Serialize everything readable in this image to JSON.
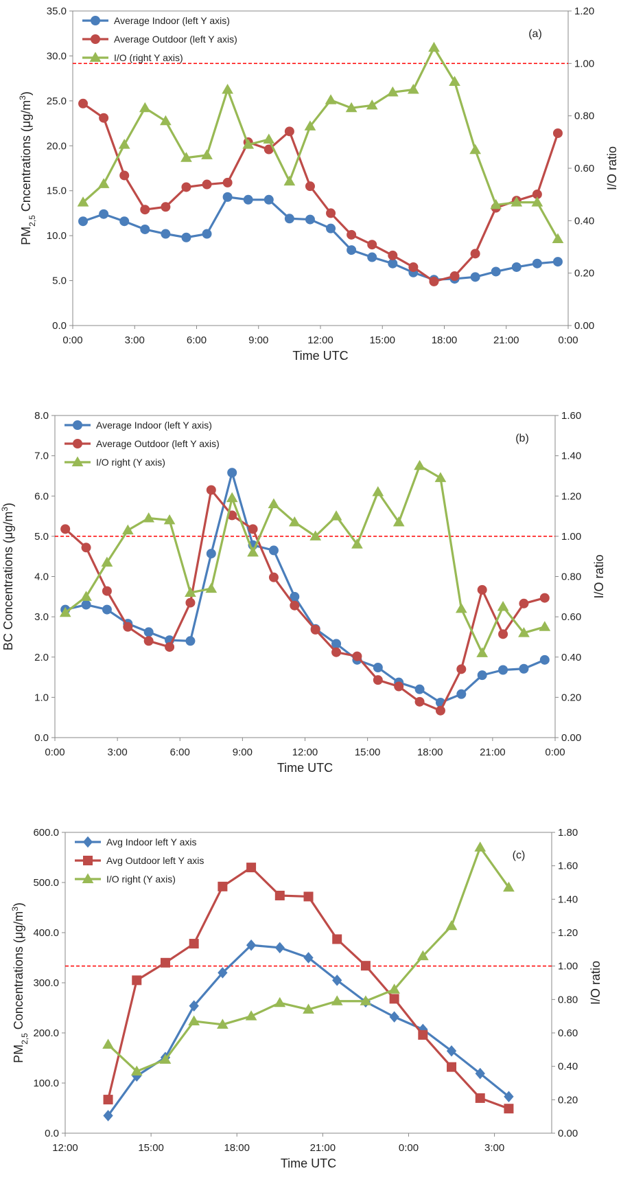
{
  "chart_data": [
    {
      "type": "line",
      "annotation": "(a)",
      "xlabel": "Time UTC",
      "ylabel_parts": [
        {
          "text": "PM"
        },
        {
          "text": "2,5",
          "shift": "sub"
        },
        {
          "text": " Cncentrations (μg/m"
        },
        {
          "text": "3",
          "shift": "super"
        },
        {
          "text": ")"
        }
      ],
      "y2label": "I/O ratio",
      "legend": "upper left",
      "xlim": [
        0,
        24
      ],
      "xticks": [
        {
          "value": 0,
          "label": "0:00"
        },
        {
          "value": 3,
          "label": "3:00"
        },
        {
          "value": 6,
          "label": "6:00"
        },
        {
          "value": 9,
          "label": "9:00"
        },
        {
          "value": 12,
          "label": "12:00"
        },
        {
          "value": 15,
          "label": "15:00"
        },
        {
          "value": 18,
          "label": "18:00"
        },
        {
          "value": 21,
          "label": "21:00"
        },
        {
          "value": 24,
          "label": "0:00"
        }
      ],
      "ylim": [
        0,
        35
      ],
      "yticks": [
        {
          "value": 0,
          "label": "0.0"
        },
        {
          "value": 5,
          "label": "5.0"
        },
        {
          "value": 10,
          "label": "10.0"
        },
        {
          "value": 15,
          "label": "15.0"
        },
        {
          "value": 20,
          "label": "20.0"
        },
        {
          "value": 25,
          "label": "25.0"
        },
        {
          "value": 30,
          "label": "30.0"
        },
        {
          "value": 35,
          "label": "35.0"
        }
      ],
      "y2lim": [
        0,
        1.2
      ],
      "y2ticks": [
        {
          "value": 0,
          "label": "0.00"
        },
        {
          "value": 0.2,
          "label": "0.20"
        },
        {
          "value": 0.4,
          "label": "0.40"
        },
        {
          "value": 0.6,
          "label": "0.60"
        },
        {
          "value": 0.8,
          "label": "0.80"
        },
        {
          "value": 1,
          "label": "1.00"
        },
        {
          "value": 1.2,
          "label": "1.20"
        }
      ],
      "ref_line": {
        "value": 1,
        "axis": "y2",
        "color": "#ff0000"
      },
      "x": [
        0.5,
        1.5,
        2.5,
        3.5,
        4.5,
        5.5,
        6.5,
        7.5,
        8.5,
        9.5,
        10.5,
        11.5,
        12.5,
        13.5,
        14.5,
        15.5,
        16.5,
        17.5,
        18.5,
        19.5,
        20.5,
        21.5,
        22.5,
        23.5
      ],
      "series": [
        {
          "name": "Average Indoor (left Y axis)",
          "color": "#4a7ebb",
          "marker": "circle",
          "values": [
            11.6,
            12.4,
            11.6,
            10.7,
            10.2,
            9.8,
            10.2,
            14.3,
            14.0,
            14.0,
            11.9,
            11.8,
            10.8,
            8.4,
            7.6,
            6.9,
            5.9,
            5.1,
            5.2,
            5.4,
            6.0,
            6.5,
            6.9,
            7.1
          ]
        },
        {
          "name": "Average Outdoor (left Y axis)",
          "color": "#be4b48",
          "marker": "circle",
          "values": [
            24.7,
            23.1,
            16.7,
            12.9,
            13.2,
            15.4,
            15.7,
            15.9,
            20.4,
            19.6,
            21.6,
            15.5,
            12.5,
            10.1,
            9.0,
            7.8,
            6.5,
            4.9,
            5.5,
            8.0,
            13.1,
            13.9,
            14.6,
            21.4
          ]
        },
        {
          "name": "I/O (right Y axis)",
          "color": "#98b954",
          "marker": "triangle",
          "axis": "y2",
          "values": [
            0.47,
            0.54,
            0.69,
            0.83,
            0.78,
            0.64,
            0.65,
            0.9,
            0.69,
            0.71,
            0.55,
            0.76,
            0.86,
            0.83,
            0.84,
            0.89,
            0.9,
            1.06,
            0.93,
            0.67,
            0.46,
            0.47,
            0.47,
            0.33
          ]
        }
      ]
    },
    {
      "type": "line",
      "annotation": "(b)",
      "xlabel": "Time UTC",
      "ylabel_parts": [
        {
          "text": "BC Concentrations (μg/m"
        },
        {
          "text": "3",
          "shift": "super"
        },
        {
          "text": ")"
        }
      ],
      "y2label": "I/O ratio",
      "legend": "upper left",
      "xlim": [
        0,
        24
      ],
      "xticks": [
        {
          "value": 0,
          "label": "0:00"
        },
        {
          "value": 3,
          "label": "3:00"
        },
        {
          "value": 6,
          "label": "6:00"
        },
        {
          "value": 9,
          "label": "9:00"
        },
        {
          "value": 12,
          "label": "12:00"
        },
        {
          "value": 15,
          "label": "15:00"
        },
        {
          "value": 18,
          "label": "18:00"
        },
        {
          "value": 21,
          "label": "21:00"
        },
        {
          "value": 24,
          "label": "0:00"
        }
      ],
      "ylim": [
        0,
        8
      ],
      "yticks": [
        {
          "value": 0,
          "label": "0.0"
        },
        {
          "value": 1,
          "label": "1.0"
        },
        {
          "value": 2,
          "label": "2.0"
        },
        {
          "value": 3,
          "label": "3.0"
        },
        {
          "value": 4,
          "label": "4.0"
        },
        {
          "value": 5,
          "label": "5.0"
        },
        {
          "value": 6,
          "label": "6.0"
        },
        {
          "value": 7,
          "label": "7.0"
        },
        {
          "value": 8,
          "label": "8.0"
        }
      ],
      "y2lim": [
        0,
        1.6
      ],
      "y2ticks": [
        {
          "value": 0,
          "label": "0.00"
        },
        {
          "value": 0.2,
          "label": "0.20"
        },
        {
          "value": 0.4,
          "label": "0.40"
        },
        {
          "value": 0.6,
          "label": "0.60"
        },
        {
          "value": 0.8,
          "label": "0.80"
        },
        {
          "value": 1,
          "label": "1.00"
        },
        {
          "value": 1.2,
          "label": "1.20"
        },
        {
          "value": 1.4,
          "label": "1.40"
        },
        {
          "value": 1.6,
          "label": "1.60"
        }
      ],
      "ref_line": {
        "value": 1,
        "axis": "y2",
        "color": "#ff0000"
      },
      "x": [
        0.5,
        1.5,
        2.5,
        3.5,
        4.5,
        5.5,
        6.5,
        7.5,
        8.5,
        9.5,
        10.5,
        11.5,
        12.5,
        13.5,
        14.5,
        15.5,
        16.5,
        17.5,
        18.5,
        19.5,
        20.5,
        21.5,
        22.5,
        23.5
      ],
      "series": [
        {
          "name": "Average Indoor (left Y axis)",
          "color": "#4a7ebb",
          "marker": "circle",
          "values": [
            3.18,
            3.3,
            3.18,
            2.83,
            2.62,
            2.42,
            2.4,
            4.57,
            6.58,
            4.78,
            4.65,
            3.5,
            2.7,
            2.33,
            1.93,
            1.74,
            1.37,
            1.2,
            0.87,
            1.08,
            1.55,
            1.68,
            1.71,
            1.93
          ]
        },
        {
          "name": "Average Outdoor (left Y axis)",
          "color": "#be4b48",
          "marker": "circle",
          "values": [
            5.18,
            4.72,
            3.64,
            2.75,
            2.4,
            2.25,
            3.35,
            6.15,
            5.52,
            5.18,
            3.98,
            3.28,
            2.68,
            2.12,
            2.02,
            1.43,
            1.27,
            0.89,
            0.67,
            1.7,
            3.67,
            2.57,
            3.33,
            3.47
          ]
        },
        {
          "name": "I/O right (Y axis)",
          "color": "#98b954",
          "marker": "triangle",
          "axis": "y2",
          "values": [
            0.62,
            0.7,
            0.87,
            1.03,
            1.09,
            1.08,
            0.72,
            0.74,
            1.19,
            0.92,
            1.16,
            1.07,
            1.0,
            1.1,
            0.96,
            1.22,
            1.07,
            1.35,
            1.29,
            0.64,
            0.42,
            0.65,
            0.52,
            0.55
          ]
        }
      ]
    },
    {
      "type": "line",
      "annotation": "(c)",
      "xlabel": "Time UTC",
      "ylabel_parts": [
        {
          "text": "PM"
        },
        {
          "text": "2,5",
          "shift": "sub"
        },
        {
          "text": " Concentrations (μg/m"
        },
        {
          "text": "3",
          "shift": "super"
        },
        {
          "text": ")"
        }
      ],
      "y2label": "I/O ratio",
      "legend": "upper left",
      "xlim": [
        12,
        29
      ],
      "xticks": [
        {
          "value": 12,
          "label": "12:00"
        },
        {
          "value": 15,
          "label": "15:00"
        },
        {
          "value": 18,
          "label": "18:00"
        },
        {
          "value": 21,
          "label": "21:00"
        },
        {
          "value": 24,
          "label": "0:00"
        },
        {
          "value": 27,
          "label": "3:00"
        }
      ],
      "ylim": [
        0,
        600
      ],
      "yticks": [
        {
          "value": 0,
          "label": "0.0"
        },
        {
          "value": 100,
          "label": "100.0"
        },
        {
          "value": 200,
          "label": "200.0"
        },
        {
          "value": 300,
          "label": "300.0"
        },
        {
          "value": 400,
          "label": "400.0"
        },
        {
          "value": 500,
          "label": "500.0"
        },
        {
          "value": 600,
          "label": "600.0"
        }
      ],
      "y2lim": [
        0,
        1.8
      ],
      "y2ticks": [
        {
          "value": 0,
          "label": "0.00"
        },
        {
          "value": 0.2,
          "label": "0.20"
        },
        {
          "value": 0.4,
          "label": "0.40"
        },
        {
          "value": 0.6,
          "label": "0.60"
        },
        {
          "value": 0.8,
          "label": "0.80"
        },
        {
          "value": 1,
          "label": "1.00"
        },
        {
          "value": 1.2,
          "label": "1.20"
        },
        {
          "value": 1.4,
          "label": "1.40"
        },
        {
          "value": 1.6,
          "label": "1.60"
        },
        {
          "value": 1.8,
          "label": "1.80"
        }
      ],
      "ref_line": {
        "value": 1,
        "axis": "y2",
        "color": "#ff0000"
      },
      "x": [
        13.5,
        14.5,
        15.5,
        16.5,
        17.5,
        18.5,
        19.5,
        20.5,
        21.5,
        22.5,
        23.5,
        24.5,
        25.5,
        26.5,
        27.5
      ],
      "series": [
        {
          "name": "Avg Indoor left Y axis",
          "color": "#4a7ebb",
          "marker": "diamond",
          "values": [
            35,
            114,
            151,
            254,
            320,
            375,
            370,
            350,
            305,
            262,
            232,
            207,
            164,
            119,
            73
          ]
        },
        {
          "name": "Avg Outdoor left Y axis",
          "color": "#be4b48",
          "marker": "square",
          "values": [
            67,
            305,
            340,
            378,
            492,
            530,
            474,
            472,
            387,
            334,
            268,
            196,
            132,
            70,
            49
          ]
        },
        {
          "name": "I/O right (Y axis)",
          "color": "#98b954",
          "marker": "triangle",
          "axis": "y2",
          "values": [
            0.53,
            0.37,
            0.44,
            0.67,
            0.65,
            0.7,
            0.78,
            0.74,
            0.79,
            0.79,
            0.86,
            1.06,
            1.24,
            1.71,
            1.47
          ]
        }
      ]
    }
  ]
}
